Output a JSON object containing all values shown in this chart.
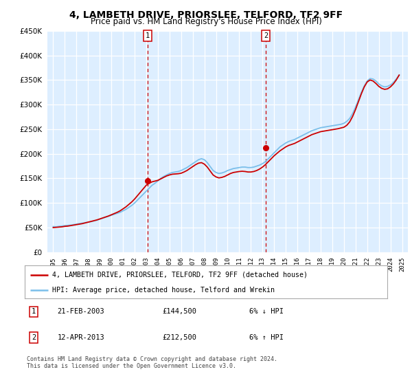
{
  "title": "4, LAMBETH DRIVE, PRIORSLEE, TELFORD, TF2 9FF",
  "subtitle": "Price paid vs. HM Land Registry's House Price Index (HPI)",
  "ylim": [
    0,
    450000
  ],
  "yticks": [
    0,
    50000,
    100000,
    150000,
    200000,
    250000,
    300000,
    350000,
    400000,
    450000
  ],
  "plot_bg_color": "#ddeeff",
  "grid_color": "#ffffff",
  "hpi_color": "#7bbfea",
  "price_color": "#cc0000",
  "sale1": {
    "date": "21-FEB-2003",
    "price": 144500,
    "x": 2003.13,
    "hpi_rel": "6% ↓ HPI"
  },
  "sale2": {
    "date": "12-APR-2013",
    "price": 212500,
    "x": 2013.28,
    "hpi_rel": "6% ↑ HPI"
  },
  "legend_line1": "4, LAMBETH DRIVE, PRIORSLEE, TELFORD, TF2 9FF (detached house)",
  "legend_line2": "HPI: Average price, detached house, Telford and Wrekin",
  "footer": "Contains HM Land Registry data © Crown copyright and database right 2024.\nThis data is licensed under the Open Government Licence v3.0.",
  "hpi_years": [
    1995.0,
    1995.25,
    1995.5,
    1995.75,
    1996.0,
    1996.25,
    1996.5,
    1996.75,
    1997.0,
    1997.25,
    1997.5,
    1997.75,
    1998.0,
    1998.25,
    1998.5,
    1998.75,
    1999.0,
    1999.25,
    1999.5,
    1999.75,
    2000.0,
    2000.25,
    2000.5,
    2000.75,
    2001.0,
    2001.25,
    2001.5,
    2001.75,
    2002.0,
    2002.25,
    2002.5,
    2002.75,
    2003.0,
    2003.25,
    2003.5,
    2003.75,
    2004.0,
    2004.25,
    2004.5,
    2004.75,
    2005.0,
    2005.25,
    2005.5,
    2005.75,
    2006.0,
    2006.25,
    2006.5,
    2006.75,
    2007.0,
    2007.25,
    2007.5,
    2007.75,
    2008.0,
    2008.25,
    2008.5,
    2008.75,
    2009.0,
    2009.25,
    2009.5,
    2009.75,
    2010.0,
    2010.25,
    2010.5,
    2010.75,
    2011.0,
    2011.25,
    2011.5,
    2011.75,
    2012.0,
    2012.25,
    2012.5,
    2012.75,
    2013.0,
    2013.25,
    2013.5,
    2013.75,
    2014.0,
    2014.25,
    2014.5,
    2014.75,
    2015.0,
    2015.25,
    2015.5,
    2015.75,
    2016.0,
    2016.25,
    2016.5,
    2016.75,
    2017.0,
    2017.25,
    2017.5,
    2017.75,
    2018.0,
    2018.25,
    2018.5,
    2018.75,
    2019.0,
    2019.25,
    2019.5,
    2019.75,
    2020.0,
    2020.25,
    2020.5,
    2020.75,
    2021.0,
    2021.25,
    2021.5,
    2021.75,
    2022.0,
    2022.25,
    2022.5,
    2022.75,
    2023.0,
    2023.25,
    2023.5,
    2023.75,
    2024.0,
    2024.25,
    2024.5,
    2024.75
  ],
  "hpi_values": [
    52000,
    51500,
    52500,
    53000,
    54000,
    54500,
    55000,
    56000,
    57000,
    58000,
    59000,
    60000,
    61000,
    62000,
    63500,
    65000,
    67000,
    69000,
    71000,
    73000,
    75000,
    77000,
    79000,
    81000,
    84000,
    87000,
    91000,
    95000,
    100000,
    106000,
    112000,
    118000,
    124000,
    130000,
    136000,
    140000,
    145000,
    150000,
    154000,
    157000,
    160000,
    162000,
    163000,
    164000,
    166000,
    169000,
    172000,
    176000,
    180000,
    184000,
    188000,
    190000,
    188000,
    182000,
    174000,
    166000,
    162000,
    160000,
    161000,
    163000,
    166000,
    168000,
    170000,
    171000,
    172000,
    173000,
    173000,
    172000,
    172000,
    173000,
    175000,
    177000,
    180000,
    184000,
    190000,
    196000,
    202000,
    208000,
    214000,
    218000,
    222000,
    225000,
    227000,
    229000,
    232000,
    235000,
    238000,
    241000,
    244000,
    247000,
    249000,
    251000,
    253000,
    254000,
    255000,
    256000,
    257000,
    258000,
    259000,
    260000,
    262000,
    266000,
    272000,
    282000,
    295000,
    310000,
    325000,
    338000,
    348000,
    353000,
    352000,
    348000,
    342000,
    338000,
    336000,
    337000,
    340000,
    345000,
    352000,
    360000
  ],
  "price_years": [
    1995.0,
    1995.25,
    1995.5,
    1995.75,
    1996.0,
    1996.25,
    1996.5,
    1996.75,
    1997.0,
    1997.25,
    1997.5,
    1997.75,
    1998.0,
    1998.25,
    1998.5,
    1998.75,
    1999.0,
    1999.25,
    1999.5,
    1999.75,
    2000.0,
    2000.25,
    2000.5,
    2000.75,
    2001.0,
    2001.25,
    2001.5,
    2001.75,
    2002.0,
    2002.25,
    2002.5,
    2002.75,
    2003.0,
    2003.25,
    2003.5,
    2003.75,
    2004.0,
    2004.25,
    2004.5,
    2004.75,
    2005.0,
    2005.25,
    2005.5,
    2005.75,
    2006.0,
    2006.25,
    2006.5,
    2006.75,
    2007.0,
    2007.25,
    2007.5,
    2007.75,
    2008.0,
    2008.25,
    2008.5,
    2008.75,
    2009.0,
    2009.25,
    2009.5,
    2009.75,
    2010.0,
    2010.25,
    2010.5,
    2010.75,
    2011.0,
    2011.25,
    2011.5,
    2011.75,
    2012.0,
    2012.25,
    2012.5,
    2012.75,
    2013.0,
    2013.25,
    2013.5,
    2013.75,
    2014.0,
    2014.25,
    2014.5,
    2014.75,
    2015.0,
    2015.25,
    2015.5,
    2015.75,
    2016.0,
    2016.25,
    2016.5,
    2016.75,
    2017.0,
    2017.25,
    2017.5,
    2017.75,
    2018.0,
    2018.25,
    2018.5,
    2018.75,
    2019.0,
    2019.25,
    2019.5,
    2019.75,
    2020.0,
    2020.25,
    2020.5,
    2020.75,
    2021.0,
    2021.25,
    2021.5,
    2021.75,
    2022.0,
    2022.25,
    2022.5,
    2022.75,
    2023.0,
    2023.25,
    2023.5,
    2023.75,
    2024.0,
    2024.25,
    2024.5,
    2024.75
  ],
  "price_values": [
    50000,
    50500,
    51000,
    51500,
    52500,
    53000,
    54000,
    55000,
    56000,
    57000,
    58000,
    59500,
    61000,
    62500,
    64000,
    65500,
    67500,
    69500,
    71500,
    73500,
    76000,
    78500,
    81000,
    84000,
    88000,
    92000,
    97000,
    102000,
    108000,
    115000,
    122000,
    129000,
    136000,
    140000,
    143000,
    144500,
    146000,
    149000,
    152000,
    155000,
    157000,
    158500,
    159000,
    159500,
    160500,
    163000,
    166000,
    170000,
    174000,
    178000,
    181000,
    182000,
    179000,
    173000,
    165000,
    157000,
    153000,
    151000,
    152000,
    154000,
    157000,
    160000,
    162000,
    163000,
    164000,
    164500,
    164000,
    163000,
    163000,
    164000,
    166000,
    169000,
    173000,
    178000,
    184000,
    190000,
    196000,
    201000,
    206000,
    210000,
    214000,
    217000,
    219000,
    221000,
    224000,
    227000,
    230000,
    233000,
    236000,
    239000,
    241000,
    243000,
    245000,
    246000,
    247000,
    248000,
    249000,
    250000,
    251000,
    252500,
    254000,
    258000,
    265000,
    276000,
    290000,
    306000,
    322000,
    336000,
    346000,
    350000,
    348000,
    343000,
    337000,
    333000,
    331000,
    332000,
    336000,
    342000,
    350000,
    360000
  ],
  "xlim": [
    1994.5,
    2025.5
  ],
  "title_fontsize": 10,
  "subtitle_fontsize": 8.5
}
